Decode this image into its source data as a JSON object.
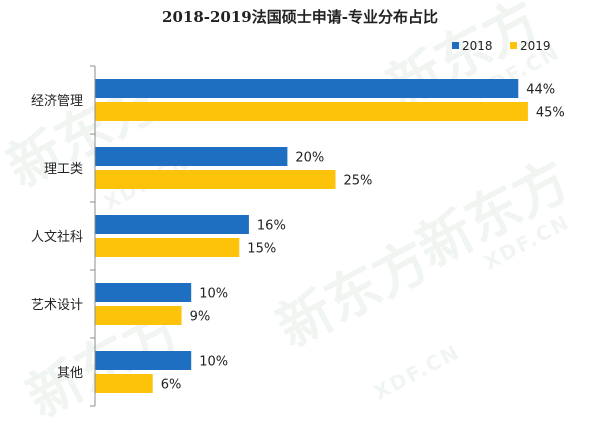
{
  "chart_data": {
    "type": "bar",
    "orientation": "horizontal",
    "title": "2018-2019法国硕士申请-专业分布占比",
    "categories": [
      "经济管理",
      "理工类",
      "人文社科",
      "艺术设计",
      "其他"
    ],
    "series": [
      {
        "name": "2018",
        "values": [
          44,
          20,
          16,
          10,
          10
        ],
        "color": "#1e6fc1"
      },
      {
        "name": "2019",
        "values": [
          45,
          25,
          15,
          9,
          6
        ],
        "color": "#fcc30a"
      }
    ],
    "value_suffix": "%",
    "xlim": [
      0,
      50
    ],
    "grid": false,
    "legend_position": "top-right"
  },
  "watermark": {
    "logo_text": "新东方",
    "sub_text": "XDF.CN"
  }
}
